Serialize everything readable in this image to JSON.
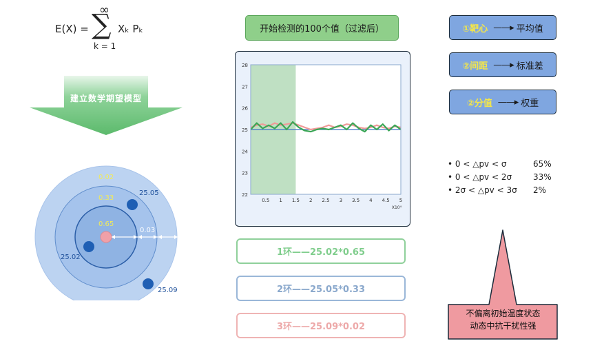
{
  "formula": {
    "lhs": "E(X) =",
    "sigma": "∑",
    "upper": "∞",
    "lower": "k = 1",
    "rhs": "Xₖ Pₖ"
  },
  "arrow_label": "建立数学期望模型",
  "target": {
    "ring_probs": [
      "0.02",
      "0.33",
      "0.65"
    ],
    "gap_label": "0.03",
    "values": [
      "25.05",
      "25.02",
      "25.09"
    ],
    "colors": {
      "outer": "#b5cff0",
      "middle": "#99bbe8",
      "inner": "#82a9dc",
      "dot": "#1f5fb4",
      "center": "#f0a0a8"
    }
  },
  "header": "开始检测的100个值（过滤后）",
  "chart_data": {
    "type": "line",
    "xlabel": "X10⁴",
    "xlim": [
      0,
      5
    ],
    "ylim": [
      22,
      28
    ],
    "x_ticks": [
      "0.5",
      "1",
      "1.5",
      "2",
      "2.5",
      "3",
      "3.5",
      "4",
      "4.5",
      "5"
    ],
    "y_ticks": [
      "22",
      "23",
      "24",
      "25",
      "26",
      "27",
      "28"
    ],
    "highlight_range": [
      0,
      1.5
    ],
    "reference_line": 25,
    "x": [
      0,
      0.2,
      0.4,
      0.6,
      0.8,
      1.0,
      1.2,
      1.4,
      1.6,
      1.8,
      2.0,
      2.2,
      2.4,
      2.6,
      2.8,
      3.0,
      3.2,
      3.4,
      3.6,
      3.8,
      4.0,
      4.2,
      4.4,
      4.6,
      4.8,
      5.0
    ],
    "series": [
      {
        "color": "#f09a98",
        "values": [
          25.1,
          25.2,
          25.25,
          25.15,
          25.3,
          25.2,
          25.25,
          25.3,
          25.2,
          25.1,
          25.0,
          25.05,
          25.1,
          25.2,
          25.1,
          25.15,
          25.25,
          25.2,
          25.1,
          25.05,
          25.1,
          25.2,
          25.1,
          25.05,
          25.15,
          25.1
        ]
      },
      {
        "color": "#3aa655",
        "values": [
          25.0,
          25.3,
          25.05,
          25.2,
          25.05,
          25.3,
          25.0,
          25.35,
          25.1,
          24.95,
          24.9,
          25.0,
          25.05,
          25.0,
          25.1,
          25.2,
          25.0,
          25.3,
          25.05,
          24.9,
          25.2,
          25.0,
          25.25,
          24.95,
          25.2,
          25.0
        ]
      }
    ]
  },
  "rings": [
    "1环——25.02*0.65",
    "2环——25.05*0.33",
    "3环——25.09*0.02"
  ],
  "buttons": [
    {
      "key": "①靶心",
      "arrow": "——▸",
      "value": "平均值"
    },
    {
      "key": "②间距",
      "arrow": "——▸",
      "value": "标准差"
    },
    {
      "key": "②分值",
      "arrow": "——▸",
      "value": "权重"
    }
  ],
  "stats": [
    {
      "text": "• 0 < △pv < σ",
      "pct": "65%"
    },
    {
      "text": "• 0 < △pv < 2σ",
      "pct": "33%"
    },
    {
      "text": "• 2σ < △pv < 3σ",
      "pct": "2%"
    }
  ],
  "callout": [
    "不偏离初始温度状态",
    "动态中抗干扰性强"
  ]
}
